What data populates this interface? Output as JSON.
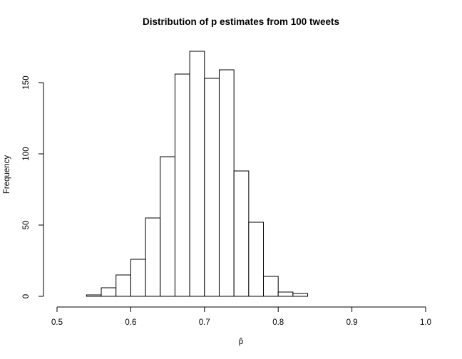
{
  "chart_data": {
    "type": "bar",
    "title": "Distribution of p estimates from 100 tweets",
    "xlabel": "p̂",
    "ylabel": "Frequency",
    "xlim": [
      0.5,
      1.0
    ],
    "ylim": [
      0,
      172
    ],
    "bin_width": 0.02,
    "x_ticks": [
      0.5,
      0.6,
      0.7,
      0.8,
      0.9,
      1.0
    ],
    "x_tick_labels": [
      "0.5",
      "0.6",
      "0.7",
      "0.8",
      "0.9",
      "1.0"
    ],
    "y_ticks": [
      0,
      50,
      100,
      150
    ],
    "y_tick_labels": [
      "0",
      "50",
      "100",
      "150"
    ],
    "bin_starts": [
      0.54,
      0.56,
      0.58,
      0.6,
      0.62,
      0.64,
      0.66,
      0.68,
      0.7,
      0.72,
      0.74,
      0.76,
      0.78,
      0.8,
      0.82
    ],
    "values": [
      1,
      6,
      15,
      26,
      55,
      98,
      156,
      172,
      153,
      159,
      88,
      52,
      14,
      3,
      2
    ],
    "grid": false,
    "legend": "none"
  }
}
